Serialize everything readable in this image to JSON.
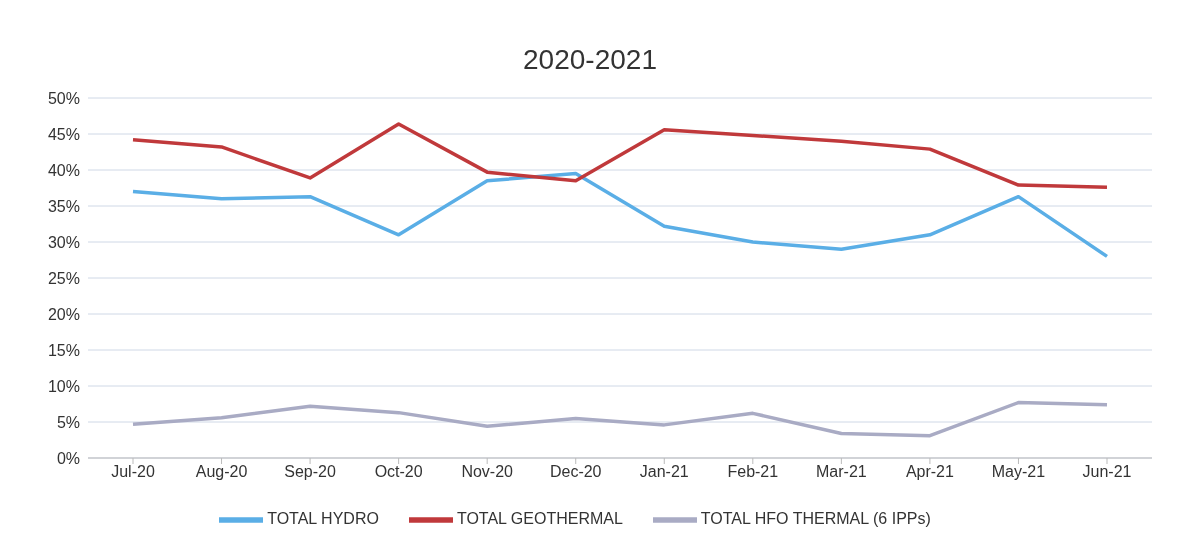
{
  "chart_data": {
    "type": "line",
    "title": "2020-2021",
    "categories": [
      "Jul-20",
      "Aug-20",
      "Sep-20",
      "Oct-20",
      "Nov-20",
      "Dec-20",
      "Jan-21",
      "Feb-21",
      "Mar-21",
      "Apr-21",
      "May-21",
      "Jun-21"
    ],
    "series": [
      {
        "name": "TOTAL HYDRO",
        "color": "#5aaee6",
        "values": [
          37,
          36,
          36.3,
          31,
          38.5,
          39.5,
          32.2,
          30,
          29,
          31,
          36.3,
          28
        ]
      },
      {
        "name": "TOTAL GEOTHERMAL",
        "color": "#c0393b",
        "values": [
          44.2,
          43.2,
          38.9,
          46.4,
          39.7,
          38.5,
          45.6,
          44.8,
          44,
          42.9,
          37.9,
          37.6
        ]
      },
      {
        "name": "TOTAL HFO THERMAL (6 IPPs)",
        "color": "#a9abc4",
        "values": [
          4.7,
          5.6,
          7.2,
          6.3,
          4.4,
          5.5,
          4.6,
          6.2,
          3.4,
          3.1,
          7.7,
          7.4
        ]
      }
    ],
    "ylim": [
      0,
      50
    ],
    "yticks": [
      {
        "value": 0,
        "label": "0%"
      },
      {
        "value": 5,
        "label": "5%"
      },
      {
        "value": 10,
        "label": "10%"
      },
      {
        "value": 15,
        "label": "15%"
      },
      {
        "value": 20,
        "label": "20%"
      },
      {
        "value": 25,
        "label": "25%"
      },
      {
        "value": 30,
        "label": "30%"
      },
      {
        "value": 35,
        "label": "35%"
      },
      {
        "value": 40,
        "label": "40%"
      },
      {
        "value": 45,
        "label": "45%"
      },
      {
        "value": 50,
        "label": "50%"
      }
    ],
    "grid": "y",
    "legend": "bottom",
    "marker": "none",
    "line_style": "solid"
  }
}
